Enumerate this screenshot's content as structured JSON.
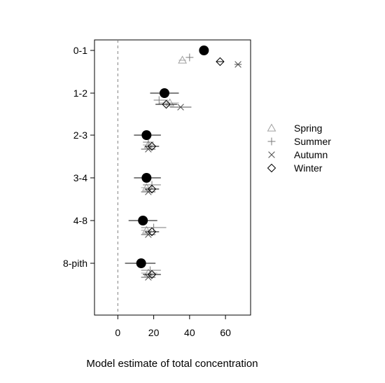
{
  "chart_data": {
    "type": "scatter",
    "title": "",
    "xlabel": "Model estimate of total concentration",
    "ylabel": "",
    "xlim": [
      -13,
      74
    ],
    "xticks": [
      0,
      20,
      40,
      60
    ],
    "reference_line_x": 0,
    "categories": [
      "0-1",
      "1-2",
      "2-3",
      "3-4",
      "4-8",
      "8-pith"
    ],
    "overall": {
      "values": [
        48,
        26,
        16,
        16,
        14,
        13
      ],
      "ci": [
        [
          46,
          50
        ],
        [
          18,
          34
        ],
        [
          9,
          24
        ],
        [
          9,
          24
        ],
        [
          6,
          22
        ],
        [
          4,
          21
        ]
      ]
    },
    "series": [
      {
        "name": "Spring",
        "marker": "triangle",
        "color": "#a0a0a0",
        "values": [
          36,
          29,
          17,
          16,
          16,
          17
        ],
        "ci": [
          [
            34,
            38
          ],
          [
            23,
            34
          ],
          [
            14,
            20
          ],
          [
            13,
            19
          ],
          [
            13,
            19
          ],
          [
            13,
            22
          ]
        ]
      },
      {
        "name": "Summer",
        "marker": "plus",
        "color": "#7a7a7a",
        "values": [
          40,
          23,
          17,
          19,
          20,
          18
        ],
        "ci": [
          [
            38,
            42
          ],
          [
            20,
            28
          ],
          [
            14,
            20
          ],
          [
            14,
            24
          ],
          [
            13,
            27
          ],
          [
            13,
            24
          ]
        ]
      },
      {
        "name": "Autumn",
        "marker": "cross",
        "color": "#505050",
        "values": [
          67,
          35,
          17,
          17,
          17,
          17
        ],
        "ci": [
          [
            65,
            69
          ],
          [
            29,
            41
          ],
          [
            13,
            21
          ],
          [
            13,
            21
          ],
          [
            13,
            21
          ],
          [
            13,
            21
          ]
        ]
      },
      {
        "name": "Winter",
        "marker": "diamond",
        "color": "#000000",
        "values": [
          57,
          27,
          19,
          19,
          19,
          19
        ],
        "ci": [
          [
            55,
            59
          ],
          [
            21,
            33
          ],
          [
            15,
            23
          ],
          [
            15,
            23
          ],
          [
            15,
            23
          ],
          [
            14,
            24
          ]
        ]
      }
    ],
    "legend_position": "right",
    "grid": false
  }
}
